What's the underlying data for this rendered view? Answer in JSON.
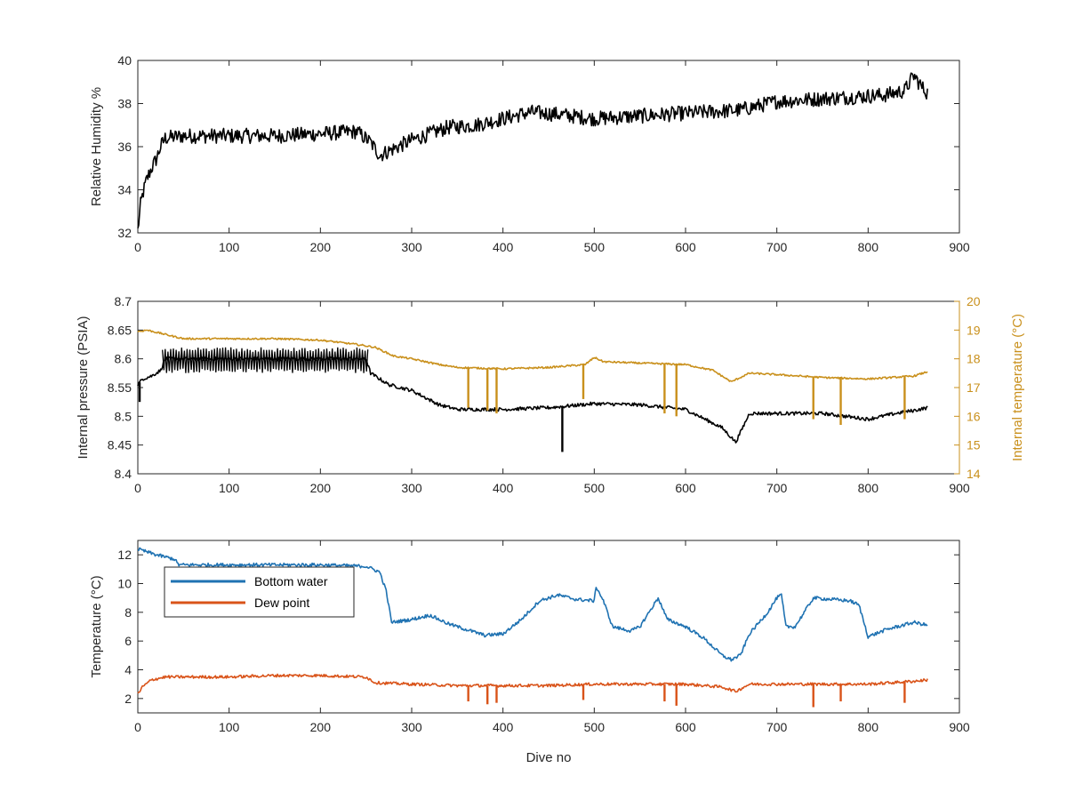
{
  "chart_data": [
    {
      "type": "line",
      "xlabel": "",
      "ylabel": "Relative Humidity %",
      "xlim": [
        0,
        900
      ],
      "ylim": [
        32,
        40
      ],
      "xticks": [
        0,
        100,
        200,
        300,
        400,
        500,
        600,
        700,
        800,
        900
      ],
      "yticks": [
        32,
        34,
        36,
        38,
        40
      ],
      "grid": false,
      "series": [
        {
          "color": "#000000",
          "noise": 0.35,
          "x": [
            0,
            3,
            6,
            10,
            15,
            20,
            25,
            30,
            50,
            100,
            150,
            200,
            240,
            255,
            265,
            275,
            300,
            340,
            370,
            400,
            430,
            460,
            500,
            540,
            580,
            620,
            660,
            700,
            740,
            780,
            820,
            840,
            850,
            860,
            865
          ],
          "y": [
            32.1,
            33.3,
            33.9,
            34.5,
            35.0,
            35.4,
            36.0,
            36.4,
            36.5,
            36.5,
            36.5,
            36.6,
            36.7,
            36.2,
            35.6,
            35.8,
            36.3,
            36.9,
            37.0,
            37.3,
            37.6,
            37.5,
            37.3,
            37.4,
            37.5,
            37.6,
            37.7,
            38.1,
            38.2,
            38.3,
            38.4,
            38.6,
            39.3,
            38.7,
            38.5
          ]
        }
      ]
    },
    {
      "type": "line",
      "xlabel": "",
      "ylabel": "Internal pressure (PSIA)",
      "ylabel_right": "Internal temperature (°C)",
      "xlim": [
        0,
        900
      ],
      "ylim": [
        8.4,
        8.7
      ],
      "ylim_right": [
        14,
        20
      ],
      "xticks": [
        0,
        100,
        200,
        300,
        400,
        500,
        600,
        700,
        800,
        900
      ],
      "yticks": [
        8.4,
        8.45,
        8.5,
        8.55,
        8.6,
        8.65,
        8.7
      ],
      "yticks_right": [
        14,
        15,
        16,
        17,
        18,
        19,
        20
      ],
      "grid": false,
      "series": [
        {
          "axis": "left",
          "color": "#000000",
          "noise": 0.003,
          "x": [
            0,
            5,
            15,
            25,
            30,
            100,
            200,
            250,
            255,
            275,
            300,
            330,
            350,
            400,
            450,
            500,
            550,
            600,
            640,
            655,
            670,
            700,
            750,
            800,
            830,
            850,
            865
          ],
          "y": [
            8.555,
            8.565,
            8.57,
            8.58,
            8.6,
            8.6,
            8.6,
            8.6,
            8.575,
            8.555,
            8.545,
            8.52,
            8.512,
            8.512,
            8.515,
            8.522,
            8.52,
            8.512,
            8.48,
            8.455,
            8.505,
            8.505,
            8.505,
            8.495,
            8.505,
            8.51,
            8.515
          ]
        },
        {
          "axis": "left",
          "color": "#000000",
          "type": "oscillation",
          "x_start": 27,
          "x_end": 253,
          "low": 8.575,
          "high": 8.62,
          "period": 3
        },
        {
          "axis": "left",
          "color": "#000000",
          "type": "spikes",
          "x": [
            2,
            465
          ],
          "y": [
            8.525,
            8.438
          ]
        },
        {
          "axis": "right",
          "color": "#c9901c",
          "noise": 0.03,
          "x": [
            0,
            10,
            50,
            100,
            150,
            200,
            240,
            260,
            280,
            300,
            330,
            350,
            400,
            450,
            490,
            500,
            510,
            550,
            600,
            630,
            650,
            670,
            700,
            750,
            800,
            850,
            865
          ],
          "y": [
            18.95,
            19.0,
            18.7,
            18.7,
            18.7,
            18.65,
            18.5,
            18.4,
            18.1,
            18.0,
            17.8,
            17.7,
            17.65,
            17.7,
            17.8,
            18.05,
            17.9,
            17.85,
            17.8,
            17.6,
            17.2,
            17.5,
            17.45,
            17.35,
            17.3,
            17.4,
            17.55
          ]
        },
        {
          "axis": "right",
          "color": "#c9901c",
          "type": "spikes",
          "x": [
            362,
            383,
            393,
            488,
            577,
            590,
            740,
            770,
            840
          ],
          "y": [
            16.3,
            16.2,
            16.1,
            16.6,
            16.1,
            16.0,
            15.9,
            15.7,
            15.9
          ]
        }
      ]
    },
    {
      "type": "line",
      "xlabel": "Dive no",
      "ylabel": "Temperature (°C)",
      "xlim": [
        0,
        900
      ],
      "ylim": [
        1,
        13
      ],
      "xticks": [
        0,
        100,
        200,
        300,
        400,
        500,
        600,
        700,
        800,
        900
      ],
      "yticks": [
        2,
        4,
        6,
        8,
        10,
        12
      ],
      "grid": false,
      "legend_position": "top-left",
      "series": [
        {
          "name": "Bottom water",
          "color": "#1f72b2",
          "noise": 0.12,
          "x": [
            0,
            10,
            20,
            40,
            45,
            100,
            150,
            200,
            250,
            265,
            272,
            278,
            300,
            320,
            340,
            360,
            380,
            400,
            420,
            440,
            460,
            480,
            500,
            502,
            510,
            520,
            540,
            550,
            560,
            570,
            580,
            600,
            620,
            640,
            650,
            660,
            670,
            690,
            700,
            705,
            710,
            720,
            740,
            760,
            780,
            790,
            800,
            820,
            850,
            865
          ],
          "y": [
            12.4,
            12.2,
            12.0,
            11.7,
            11.3,
            11.3,
            11.3,
            11.3,
            11.2,
            10.8,
            9.5,
            7.3,
            7.5,
            7.8,
            7.2,
            6.8,
            6.4,
            6.5,
            7.5,
            8.8,
            9.2,
            8.9,
            8.8,
            9.8,
            8.8,
            7.0,
            6.7,
            7.0,
            8.0,
            9.0,
            7.5,
            7.0,
            6.2,
            5.0,
            4.7,
            5.0,
            6.5,
            8.0,
            9.0,
            9.2,
            7.0,
            7.0,
            9.0,
            8.9,
            8.8,
            8.5,
            6.3,
            6.8,
            7.3,
            7.1
          ]
        },
        {
          "name": "Dew point",
          "color": "#d95319",
          "noise": 0.1,
          "x": [
            0,
            5,
            15,
            30,
            100,
            150,
            200,
            250,
            260,
            300,
            350,
            400,
            450,
            500,
            550,
            600,
            640,
            655,
            670,
            700,
            750,
            800,
            850,
            865
          ],
          "y": [
            2.3,
            2.8,
            3.3,
            3.5,
            3.5,
            3.6,
            3.6,
            3.5,
            3.1,
            3.0,
            2.9,
            2.9,
            2.9,
            3.0,
            3.0,
            3.0,
            2.8,
            2.5,
            3.0,
            3.0,
            3.0,
            3.0,
            3.2,
            3.3
          ]
        },
        {
          "name": "Dew point",
          "color": "#d95319",
          "type": "spikes",
          "x": [
            362,
            383,
            393,
            488,
            577,
            590,
            740,
            770,
            840
          ],
          "y": [
            1.8,
            1.6,
            1.7,
            1.9,
            1.8,
            1.5,
            1.4,
            1.8,
            1.7
          ]
        }
      ]
    }
  ]
}
